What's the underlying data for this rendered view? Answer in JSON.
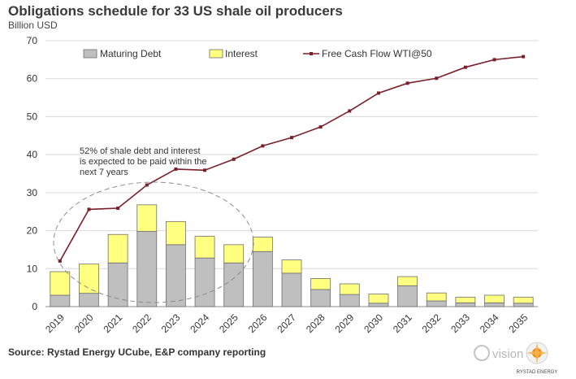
{
  "title": "Obligations schedule for 33 US shale oil producers",
  "unit": "Billion USD",
  "source": "Source: Rystad Energy UCube, E&P company reporting",
  "watermark": "vision",
  "logo_text": "RYSTAD ENERGY",
  "chart_data": {
    "type": "bar",
    "stacked": true,
    "categories": [
      "2019",
      "2020",
      "2021",
      "2022",
      "2023",
      "2024",
      "2025",
      "2026",
      "2027",
      "2028",
      "2029",
      "2030",
      "2031",
      "2032",
      "2033",
      "2034",
      "2035"
    ],
    "series": [
      {
        "name": "Maturing Debt",
        "type": "bar",
        "color": "#bfbfbf",
        "values": [
          3.0,
          3.5,
          11.5,
          19.8,
          16.3,
          12.8,
          11.5,
          14.5,
          8.8,
          4.5,
          3.2,
          0.9,
          5.5,
          1.5,
          1.0,
          1.0,
          0.9
        ]
      },
      {
        "name": "Interest",
        "type": "bar",
        "color": "#ffff80",
        "values": [
          6.2,
          7.7,
          7.5,
          7.0,
          6.1,
          5.7,
          4.8,
          3.8,
          3.5,
          2.9,
          2.8,
          2.4,
          2.4,
          2.1,
          1.5,
          2.0,
          1.6
        ]
      },
      {
        "name": "Free Cash Flow WTI@50",
        "type": "line",
        "color": "#7b1f2a",
        "values": [
          12.0,
          25.6,
          25.9,
          32.0,
          36.2,
          35.9,
          38.8,
          42.3,
          44.5,
          47.3,
          51.5,
          56.2,
          58.8,
          60.1,
          63.0,
          65.0,
          65.8
        ]
      }
    ],
    "ylim": [
      0,
      70
    ],
    "yticks": [
      0,
      10,
      20,
      30,
      40,
      50,
      60,
      70
    ],
    "grid": true,
    "legend": "top",
    "annotation": [
      "52% of shale debt and interest",
      "is expected to be paid within the",
      "next 7 years"
    ]
  }
}
